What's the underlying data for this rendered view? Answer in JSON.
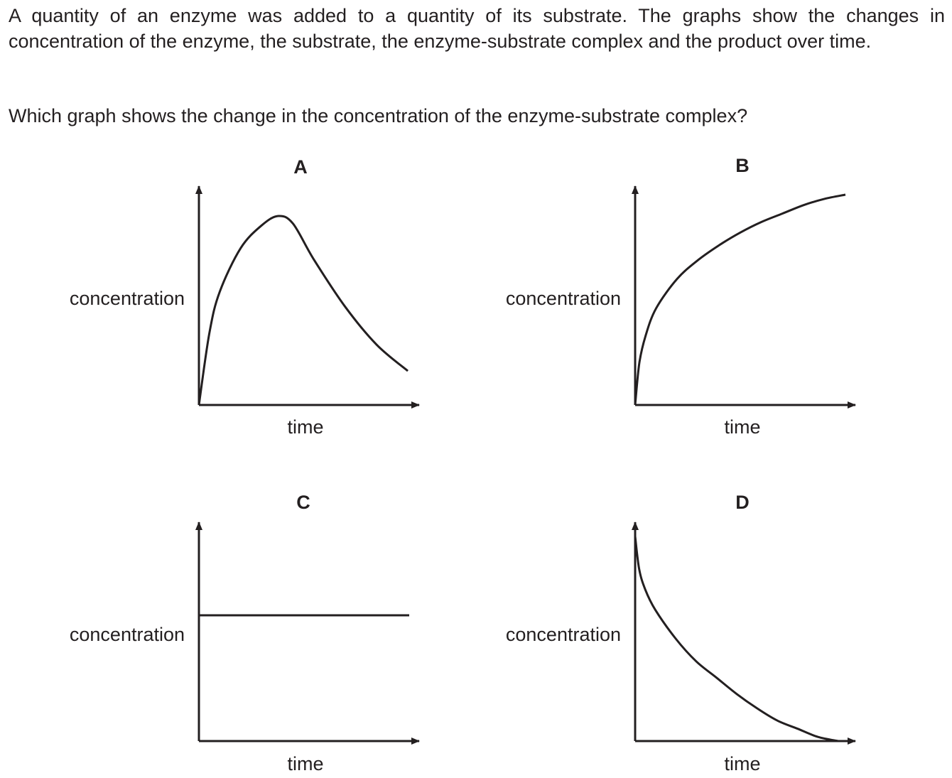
{
  "question": {
    "stem": "A quantity of an enzyme was added to a quantity of its substrate. The graphs show the changes in concentration of the enzyme, the substrate, the enzyme-substrate complex and the product over time.",
    "prompt": "Which graph shows the change in the concentration of the enzyme-substrate complex?"
  },
  "colors": {
    "ink": "#231f20",
    "background": "#ffffff"
  },
  "chart_data": [
    {
      "type": "line",
      "option": "A",
      "xlabel": "time",
      "ylabel": "concentration",
      "xlim": [
        0,
        1
      ],
      "ylim": [
        0,
        1
      ],
      "grid": false,
      "shape": "rises steeply from zero to a peak then falls",
      "series": [
        {
          "x": [
            0,
            0.05,
            0.1,
            0.2,
            0.3,
            0.38,
            0.45,
            0.55,
            0.7,
            0.85,
            1.0
          ],
          "values": [
            0,
            0.38,
            0.6,
            0.83,
            0.95,
            1.0,
            0.96,
            0.77,
            0.52,
            0.32,
            0.18
          ]
        }
      ]
    },
    {
      "type": "line",
      "option": "B",
      "xlabel": "time",
      "ylabel": "concentration",
      "xlim": [
        0,
        1
      ],
      "ylim": [
        0,
        1
      ],
      "grid": false,
      "shape": "rises from zero and levels off",
      "series": [
        {
          "x": [
            0,
            0.02,
            0.05,
            0.1,
            0.2,
            0.3,
            0.4,
            0.5,
            0.6,
            0.7,
            0.8,
            0.9,
            1.0
          ],
          "values": [
            0,
            0.2,
            0.33,
            0.46,
            0.6,
            0.69,
            0.76,
            0.82,
            0.87,
            0.91,
            0.95,
            0.98,
            1.0
          ]
        }
      ]
    },
    {
      "type": "line",
      "option": "C",
      "xlabel": "time",
      "ylabel": "concentration",
      "xlim": [
        0,
        1
      ],
      "ylim": [
        0,
        1
      ],
      "grid": false,
      "shape": "constant horizontal line",
      "series": [
        {
          "x": [
            0,
            1.0
          ],
          "values": [
            0.6,
            0.6
          ]
        }
      ]
    },
    {
      "type": "line",
      "option": "D",
      "xlabel": "time",
      "ylabel": "concentration",
      "xlim": [
        0,
        1
      ],
      "ylim": [
        0,
        1
      ],
      "grid": false,
      "shape": "falls from maximum towards zero",
      "series": [
        {
          "x": [
            0,
            0.02,
            0.05,
            0.1,
            0.2,
            0.3,
            0.4,
            0.5,
            0.6,
            0.7,
            0.8,
            0.9,
            1.0
          ],
          "values": [
            1.0,
            0.84,
            0.74,
            0.64,
            0.5,
            0.39,
            0.31,
            0.23,
            0.16,
            0.1,
            0.06,
            0.02,
            0
          ]
        }
      ]
    }
  ]
}
